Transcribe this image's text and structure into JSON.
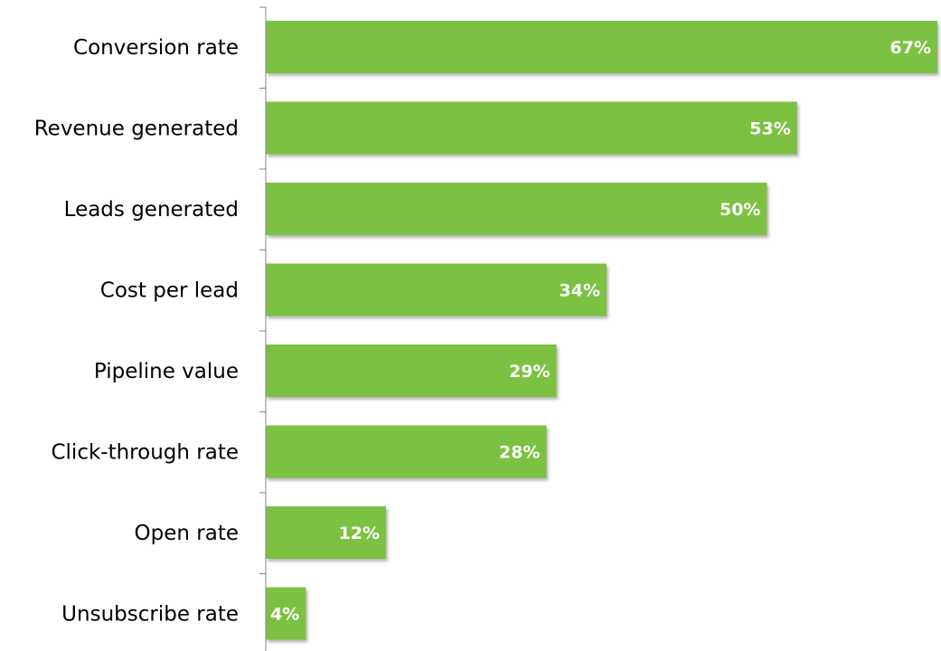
{
  "chart_data": {
    "type": "bar",
    "orientation": "horizontal",
    "categories": [
      "Conversion rate",
      "Revenue generated",
      "Leads generated",
      "Cost per lead",
      "Pipeline value",
      "Click-through rate",
      "Open rate",
      "Unsubscribe rate"
    ],
    "values": [
      67,
      53,
      50,
      34,
      29,
      28,
      12,
      4
    ],
    "value_labels": [
      "67%",
      "53%",
      "50%",
      "34%",
      "29%",
      "28%",
      "12%",
      "4%"
    ],
    "unit": "%",
    "xlim": [
      0,
      67
    ],
    "bar_color": "#7dc142",
    "shadow_color": "#9aa39a",
    "axis_color": "#868686",
    "grid": false,
    "legend": "none"
  }
}
